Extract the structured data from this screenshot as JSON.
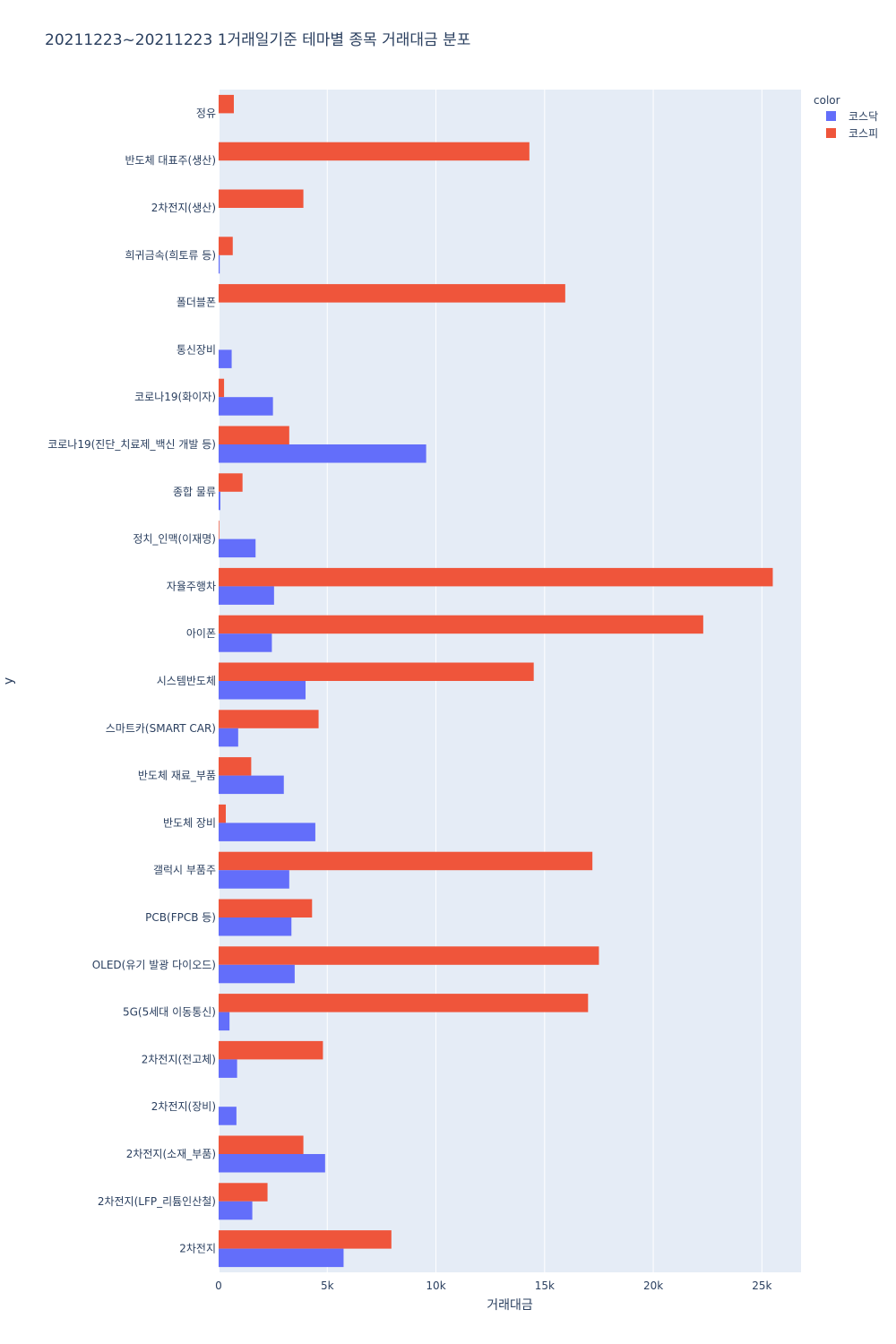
{
  "chart_data": {
    "type": "bar",
    "orientation": "horizontal",
    "barmode": "group",
    "title": "20211223~20211223 1거래일기준 테마별 종목 거래대금 분포",
    "xlabel": "거래대금",
    "ylabel": "y",
    "xlim": [
      0,
      26800
    ],
    "x_ticks": [
      0,
      5000,
      10000,
      15000,
      20000,
      25000
    ],
    "x_tick_labels": [
      "0",
      "5k",
      "10k",
      "15k",
      "20k",
      "25k"
    ],
    "grid": true,
    "legend": {
      "title": "color",
      "position": "top-right"
    },
    "categories": [
      "정유",
      "반도체 대표주(생산)",
      "2차전지(생산)",
      "희귀금속(희토류 등)",
      "폴더블폰",
      "통신장비",
      "코로나19(화이자)",
      "코로나19(진단_치료제_백신 개발 등)",
      "종합 물류",
      "정치_인맥(이재명)",
      "자율주행차",
      "아이폰",
      "시스템반도체",
      "스마트카(SMART CAR)",
      "반도체 재료_부품",
      "반도체 장비",
      "갤럭시 부품주",
      "PCB(FPCB 등)",
      "OLED(유기 발광 다이오드)",
      "5G(5세대 이동통신)",
      "2차전지(전고체)",
      "2차전지(장비)",
      "2차전지(소재_부품)",
      "2차전지(LFP_리튬인산철)",
      "2차전지"
    ],
    "series": [
      {
        "name": "코스닥",
        "color": "#636efa",
        "values": [
          0,
          0,
          0,
          50,
          0,
          600,
          2500,
          9550,
          80,
          1700,
          2550,
          2450,
          4000,
          900,
          3000,
          4450,
          3250,
          3350,
          3500,
          500,
          850,
          820,
          4900,
          1550,
          5750
        ]
      },
      {
        "name": "코스피",
        "color": "#ef553b",
        "values": [
          700,
          14300,
          3900,
          650,
          15950,
          0,
          250,
          3250,
          1100,
          30,
          25500,
          22300,
          14500,
          4600,
          1500,
          330,
          17200,
          4300,
          17500,
          17000,
          4800,
          0,
          3900,
          2250,
          7950
        ]
      }
    ]
  }
}
